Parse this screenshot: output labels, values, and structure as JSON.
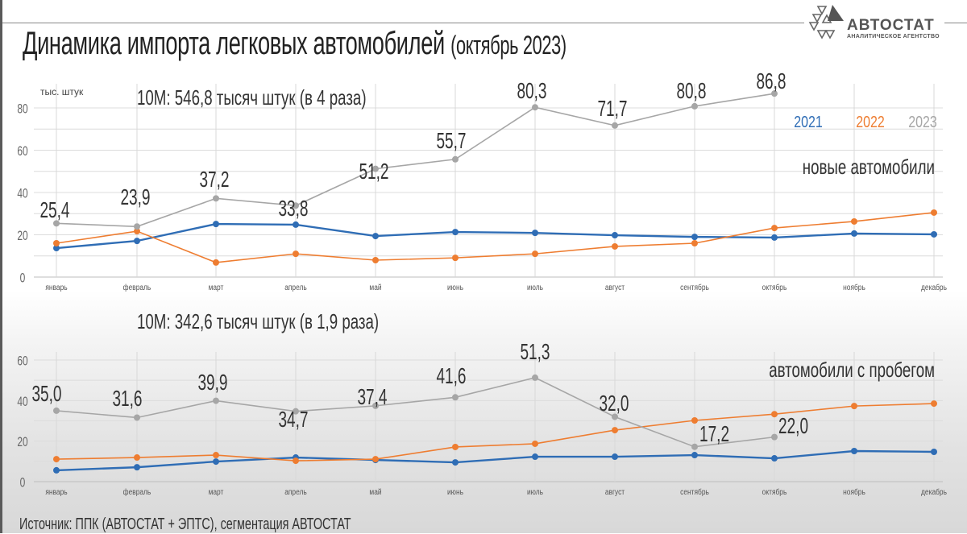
{
  "header": {
    "title": "Динамика импорта легковых автомобилей",
    "title_period": "(октябрь 2023)"
  },
  "logo": {
    "name": "АВТОСТАТ",
    "subtitle": "АНАЛИТИЧЕСКОЕ АГЕНТСТВО"
  },
  "legend": [
    {
      "label": "2021",
      "color": "#2f6db5"
    },
    {
      "label": "2022",
      "color": "#ee7d31"
    },
    {
      "label": "2023",
      "color": "#a6a6a6"
    }
  ],
  "source": "Источник: ППК (АВТОСТАТ + ЭПТС), сегментация АВТОСТАТ",
  "chart_data": [
    {
      "type": "line",
      "title": "новые автомобили",
      "subtitle": "10М: 546,8 тысяч штук (в 4 раза)",
      "ylabel": "тыс. штук",
      "xlabel": "",
      "ylim": [
        0,
        80
      ],
      "yticks": [
        0,
        20,
        40,
        60,
        80
      ],
      "grid": true,
      "legend_position": "top-right",
      "categories": [
        "январь",
        "февраль",
        "март",
        "апрель",
        "май",
        "июнь",
        "июль",
        "август",
        "сентябрь",
        "октябрь",
        "ноябрь",
        "декабрь"
      ],
      "series": [
        {
          "name": "2021",
          "color": "#2f6db5",
          "values": [
            13.7,
            17.1,
            25.1,
            24.8,
            19.4,
            21.3,
            20.9,
            19.8,
            19.0,
            18.7,
            20.6,
            20.2
          ]
        },
        {
          "name": "2022",
          "color": "#ee7d31",
          "values": [
            16.0,
            21.7,
            6.9,
            11.0,
            8.0,
            9.1,
            11.0,
            14.5,
            16.0,
            23.2,
            26.3,
            30.5
          ]
        },
        {
          "name": "2023",
          "color": "#a6a6a6",
          "values": [
            25.4,
            23.9,
            37.2,
            33.8,
            51.2,
            55.7,
            80.3,
            71.7,
            80.8,
            86.8,
            null,
            null
          ],
          "labels": [
            "25,4",
            "23,9",
            "37,2",
            "33,8",
            "51,2",
            "55,7",
            "80,3",
            "71,7",
            "80,8",
            "86,8"
          ]
        }
      ]
    },
    {
      "type": "line",
      "title": "автомобили с пробегом",
      "subtitle": "10М: 342,6 тысяч штук (в 1,9 раза)",
      "ylabel": "",
      "xlabel": "",
      "ylim": [
        0,
        60
      ],
      "yticks": [
        0,
        20,
        40,
        60
      ],
      "grid": true,
      "categories": [
        "январь",
        "февраль",
        "март",
        "апрель",
        "май",
        "июнь",
        "июль",
        "август",
        "сентябрь",
        "октябрь",
        "ноябрь",
        "декабрь"
      ],
      "series": [
        {
          "name": "2021",
          "color": "#2f6db5",
          "values": [
            5.6,
            7.1,
            9.9,
            11.9,
            10.7,
            9.5,
            12.3,
            12.3,
            13.1,
            11.5,
            15.1,
            14.7
          ]
        },
        {
          "name": "2022",
          "color": "#ee7d31",
          "values": [
            11.1,
            11.9,
            13.1,
            10.3,
            11.1,
            17.1,
            18.7,
            25.4,
            30.2,
            33.3,
            37.3,
            38.5
          ]
        },
        {
          "name": "2023",
          "color": "#a6a6a6",
          "values": [
            35.0,
            31.6,
            39.9,
            34.7,
            37.4,
            41.6,
            51.3,
            32.0,
            17.2,
            22.0,
            null,
            null
          ],
          "labels": [
            "35,0",
            "31,6",
            "39,9",
            "34,7",
            "37,4",
            "41,6",
            "51,3",
            "32,0",
            "17,2",
            "22,0"
          ]
        }
      ]
    }
  ]
}
